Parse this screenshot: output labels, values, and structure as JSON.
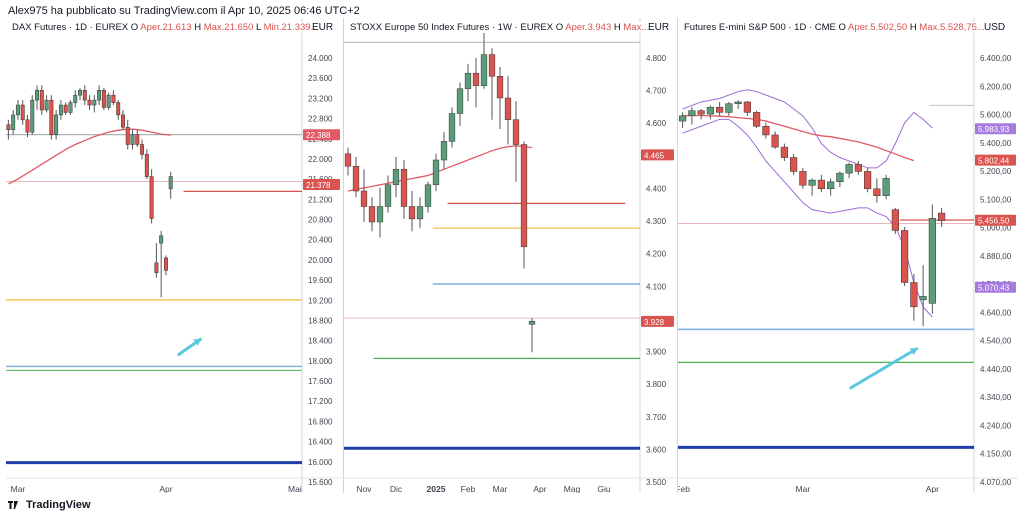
{
  "header": {
    "published_text": "Alex975 ha pubblicato su TradingView.com il Apr 10, 2025 06:46 UTC+2"
  },
  "footer": {
    "brand": "TradingView"
  },
  "colors": {
    "bull": "#5b9c7a",
    "bear": "#d9534f",
    "ma": "#e05a66",
    "band": "#9c6bd6",
    "orange": "#f5b83b",
    "blue": "#7aaee0",
    "green": "#4caf50",
    "navy": "#1e3faa"
  },
  "chart_data": [
    {
      "type": "candlestick",
      "title": "DAX Futures · 1D · EUREX",
      "ohlc_text": {
        "o_label": "O",
        "o": "Aper.21.613",
        "h_label": "H",
        "h": "Max.21.650",
        "l_label": "L",
        "l": "Min.21.339..."
      },
      "currency": "EUR",
      "ylim": [
        15600,
        24400
      ],
      "y_ticks": [
        "24.000",
        "23.600",
        "23.200",
        "22.800",
        "22.400",
        "22.000",
        "21.600",
        "21.200",
        "20.800",
        "20.400",
        "20.000",
        "19.600",
        "19.200",
        "18.800",
        "18.400",
        "18.000",
        "17.600",
        "17.200",
        "16.800",
        "16.400",
        "16.000",
        "15.600"
      ],
      "x_ticks": [
        {
          "label": "Mar",
          "index": 2
        },
        {
          "label": "Apr",
          "index": 33
        },
        {
          "label": "Mai",
          "index": 60
        }
      ],
      "price_labels": [
        {
          "text": "22.388",
          "value": 22388,
          "color": "#e05a66"
        },
        {
          "text": "21.378",
          "value": 21378,
          "color": "#d9534f"
        }
      ],
      "candles": [
        [
          22600,
          22700,
          22300,
          22500
        ],
        [
          22500,
          22900,
          22400,
          22800
        ],
        [
          22800,
          23100,
          22700,
          23000
        ],
        [
          23000,
          23100,
          22600,
          22700
        ],
        [
          22700,
          22800,
          22350,
          22450
        ],
        [
          22450,
          23200,
          22400,
          23100
        ],
        [
          23100,
          23400,
          22900,
          23300
        ],
        [
          23300,
          23400,
          22800,
          22900
        ],
        [
          22900,
          23200,
          22850,
          23100
        ],
        [
          23100,
          23200,
          22300,
          22400
        ],
        [
          22400,
          22900,
          22300,
          22800
        ],
        [
          22800,
          23100,
          22700,
          23000
        ],
        [
          23000,
          23050,
          22800,
          22850
        ],
        [
          22850,
          23100,
          22800,
          23050
        ],
        [
          23050,
          23300,
          22950,
          23200
        ],
        [
          23200,
          23350,
          23100,
          23300
        ],
        [
          23300,
          23400,
          23000,
          23100
        ],
        [
          23100,
          23200,
          22900,
          23000
        ],
        [
          23000,
          23200,
          22850,
          23100
        ],
        [
          23100,
          23400,
          23000,
          23300
        ],
        [
          23300,
          23350,
          22900,
          22950
        ],
        [
          22950,
          23250,
          22900,
          23200
        ],
        [
          23200,
          23300,
          23000,
          23050
        ],
        [
          23050,
          23100,
          22700,
          22800
        ],
        [
          22800,
          22900,
          22500,
          22550
        ],
        [
          22550,
          22700,
          22100,
          22200
        ],
        [
          22200,
          22500,
          22100,
          22400
        ],
        [
          22400,
          22500,
          22150,
          22200
        ],
        [
          22200,
          22300,
          21900,
          22000
        ],
        [
          22000,
          22100,
          21500,
          21550
        ],
        [
          21550,
          21700,
          20600,
          20700
        ],
        [
          19800,
          20200,
          19500,
          19600
        ],
        [
          20200,
          20450,
          19100,
          20350
        ],
        [
          19900,
          19950,
          19550,
          19650
        ],
        [
          21300,
          21650,
          21100,
          21550
        ]
      ],
      "ma": [
        21400,
        21450,
        21500,
        21560,
        21620,
        21680,
        21740,
        21800,
        21860,
        21920,
        21980,
        22040,
        22100,
        22150,
        22200,
        22240,
        22280,
        22320,
        22360,
        22390,
        22420,
        22450,
        22470,
        22490,
        22500,
        22510,
        22510,
        22500,
        22490,
        22470,
        22450,
        22430,
        22410,
        22400,
        22388
      ],
      "hlines": [
        {
          "value": 22400,
          "x0": 0,
          "x1": 1,
          "color": "#b0b3b8",
          "width": 1.2
        },
        {
          "value": 21450,
          "x0": 0,
          "x1": 1,
          "color": "#eab7bb",
          "width": 1
        },
        {
          "value": 21250,
          "x0": 0.6,
          "x1": 1,
          "color": "#d9534f",
          "width": 1.3
        },
        {
          "value": 19050,
          "x0": 0,
          "x1": 1,
          "color": "#f5b83b",
          "width": 1.2
        },
        {
          "value": 17700,
          "x0": 0,
          "x1": 1,
          "color": "#7aaee0",
          "width": 1.4
        },
        {
          "value": 17620,
          "x0": 0,
          "x1": 1,
          "color": "#4caf50",
          "width": 1
        },
        {
          "value": 15750,
          "x0": 0,
          "x1": 1,
          "color": "#1e3faa",
          "width": 3
        }
      ],
      "arrow": {
        "from": [
          0.58,
          0.71
        ],
        "to": [
          0.66,
          0.675
        ]
      }
    },
    {
      "type": "candlestick",
      "title": "STOXX Europe 50 Index Futures · 1W · EUREX",
      "ohlc_text": {
        "o_label": "O",
        "o": "Aper.3.943",
        "h_label": "H",
        "h": "Max..."
      },
      "currency": "EUR",
      "ylim": [
        3450,
        4850
      ],
      "y_ticks": [
        "4.800",
        "4.700",
        "4.600",
        "4.500",
        "4.400",
        "4.300",
        "4.200",
        "4.100",
        "4.000",
        "3.900",
        "3.800",
        "3.700",
        "3.600",
        "3.500"
      ],
      "x_ticks": [
        {
          "label": "Nov",
          "index": 2
        },
        {
          "label": "Dic",
          "index": 6
        },
        {
          "label": "2025",
          "index": 11,
          "bold": true
        },
        {
          "label": "Feb",
          "index": 15
        },
        {
          "label": "Mar",
          "index": 19
        },
        {
          "label": "Apr",
          "index": 24
        },
        {
          "label": "Mag",
          "index": 28
        },
        {
          "label": "Giu",
          "index": 32
        }
      ],
      "price_labels": [
        {
          "text": "4.465",
          "value": 4465,
          "color": "#d9534f"
        },
        {
          "text": "3.928",
          "value": 3928,
          "color": "#d9534f"
        }
      ],
      "candles": [
        [
          4470,
          4490,
          4400,
          4430
        ],
        [
          4430,
          4460,
          4330,
          4350
        ],
        [
          4350,
          4420,
          4250,
          4300
        ],
        [
          4300,
          4330,
          4220,
          4250
        ],
        [
          4250,
          4360,
          4200,
          4300
        ],
        [
          4300,
          4400,
          4280,
          4370
        ],
        [
          4370,
          4460,
          4330,
          4420
        ],
        [
          4420,
          4450,
          4260,
          4300
        ],
        [
          4300,
          4350,
          4220,
          4260
        ],
        [
          4260,
          4330,
          4230,
          4300
        ],
        [
          4300,
          4380,
          4280,
          4370
        ],
        [
          4370,
          4470,
          4350,
          4450
        ],
        [
          4450,
          4540,
          4420,
          4510
        ],
        [
          4510,
          4620,
          4490,
          4600
        ],
        [
          4600,
          4700,
          4560,
          4680
        ],
        [
          4680,
          4760,
          4640,
          4730
        ],
        [
          4730,
          4780,
          4620,
          4690
        ],
        [
          4690,
          4860,
          4680,
          4790
        ],
        [
          4790,
          4810,
          4580,
          4720
        ],
        [
          4720,
          4750,
          4550,
          4650
        ],
        [
          4650,
          4720,
          4500,
          4580
        ],
        [
          4580,
          4640,
          4380,
          4500
        ],
        [
          4500,
          4510,
          4100,
          4170
        ],
        [
          3920,
          3940,
          3830,
          3930
        ]
      ],
      "ma": [
        4350,
        4355,
        4360,
        4365,
        4370,
        4375,
        4380,
        4385,
        4390,
        4395,
        4400,
        4410,
        4420,
        4430,
        4440,
        4450,
        4460,
        4470,
        4480,
        4488,
        4493,
        4496,
        4494,
        4490
      ],
      "hlines": [
        {
          "value": 4830,
          "x0": 0,
          "x1": 1,
          "color": "#b0b3b8",
          "width": 1
        },
        {
          "value": 4310,
          "x0": 0.35,
          "x1": 0.95,
          "color": "#d9534f",
          "width": 1.3
        },
        {
          "value": 4230,
          "x0": 0.3,
          "x1": 1,
          "color": "#f5b83b",
          "width": 1.2
        },
        {
          "value": 4050,
          "x0": 0.3,
          "x1": 1,
          "color": "#7aaee0",
          "width": 1.4
        },
        {
          "value": 3940,
          "x0": 0,
          "x1": 1,
          "color": "#eab7bb",
          "width": 1
        },
        {
          "value": 3810,
          "x0": 0.1,
          "x1": 1,
          "color": "#4caf50",
          "width": 1.2
        },
        {
          "value": 3520,
          "x0": 0,
          "x1": 1,
          "color": "#1e3faa",
          "width": 3
        }
      ]
    },
    {
      "type": "candlestick",
      "title": "Futures E-mini S&P 500 · 1D · CME",
      "ohlc_text": {
        "o_label": "O",
        "o": "Aper.5.502,50",
        "h_label": "H",
        "h": "Max.5.528,75..."
      },
      "currency": "USD",
      "ylim": [
        4020,
        6520
      ],
      "y_ticks": [
        "6.400,00",
        "6.200,00",
        "5.600,00",
        "5.400,00",
        "5.200,00",
        "5.100,00",
        "5.000,00",
        "4.880,00",
        "4.760,00",
        "4.640,00",
        "4.540,00",
        "4.440,00",
        "4.340,00",
        "4.240,00",
        "4.150,00",
        "4.070,00"
      ],
      "x_ticks": [
        {
          "label": "Feb",
          "index": 0
        },
        {
          "label": "Mar",
          "index": 13
        },
        {
          "label": "Apr",
          "index": 27
        }
      ],
      "price_labels": [
        {
          "text": "5.983,93",
          "value": 5983,
          "color": "#a57be0"
        },
        {
          "text": "5.802,44",
          "value": 5802,
          "color": "#d9534f"
        },
        {
          "text": "5.456,50",
          "value": 5456,
          "color": "#d9534f"
        },
        {
          "text": "5.070,43",
          "value": 5070,
          "color": "#a57be0"
        }
      ],
      "candles": [
        [
          6030,
          6080,
          5990,
          6060
        ],
        [
          6060,
          6110,
          6010,
          6090
        ],
        [
          6090,
          6100,
          6040,
          6070
        ],
        [
          6070,
          6120,
          6040,
          6110
        ],
        [
          6110,
          6140,
          6060,
          6080
        ],
        [
          6080,
          6140,
          6060,
          6130
        ],
        [
          6130,
          6150,
          6100,
          6140
        ],
        [
          6140,
          6145,
          6060,
          6080
        ],
        [
          6080,
          6090,
          5990,
          6000
        ],
        [
          6000,
          6020,
          5930,
          5950
        ],
        [
          5950,
          5970,
          5870,
          5880
        ],
        [
          5880,
          5900,
          5800,
          5820
        ],
        [
          5820,
          5840,
          5720,
          5740
        ],
        [
          5740,
          5760,
          5640,
          5660
        ],
        [
          5660,
          5700,
          5600,
          5690
        ],
        [
          5690,
          5720,
          5620,
          5640
        ],
        [
          5640,
          5700,
          5600,
          5680
        ],
        [
          5680,
          5740,
          5650,
          5730
        ],
        [
          5730,
          5790,
          5700,
          5780
        ],
        [
          5780,
          5800,
          5720,
          5740
        ],
        [
          5740,
          5760,
          5620,
          5640
        ],
        [
          5640,
          5700,
          5560,
          5600
        ],
        [
          5600,
          5720,
          5580,
          5700
        ],
        [
          5520,
          5530,
          5380,
          5400
        ],
        [
          5400,
          5420,
          5080,
          5100
        ],
        [
          5100,
          5150,
          4880,
          4960
        ],
        [
          5000,
          5200,
          4850,
          5020
        ],
        [
          4980,
          5550,
          4920,
          5470
        ],
        [
          5500,
          5530,
          5420,
          5456
        ]
      ],
      "ma": [
        6060,
        6062,
        6062,
        6060,
        6058,
        6055,
        6050,
        6045,
        6040,
        6030,
        6015,
        6000,
        5985,
        5970,
        5955,
        5945,
        5940,
        5930,
        5920,
        5910,
        5895,
        5880,
        5860,
        5840,
        5820,
        5802
      ],
      "band_upper": [
        6100,
        6120,
        6140,
        6150,
        6160,
        6180,
        6200,
        6210,
        6200,
        6180,
        6160,
        6140,
        6100,
        6060,
        5990,
        5900,
        5850,
        5820,
        5800,
        5780,
        5760,
        5760,
        5800,
        5900,
        6020,
        6080,
        6040,
        5990
      ],
      "band_lower": [
        5960,
        5980,
        6000,
        6020,
        6040,
        6040,
        6000,
        5950,
        5880,
        5800,
        5740,
        5680,
        5620,
        5560,
        5520,
        5510,
        5500,
        5510,
        5520,
        5530,
        5530,
        5500,
        5480,
        5420,
        5300,
        5100,
        4960,
        4900
      ],
      "hlines": [
        {
          "value": 6120,
          "x0": 0.85,
          "x1": 1,
          "color": "#c6c8cc",
          "width": 1.2
        },
        {
          "value": 5460,
          "x0": 0.75,
          "x1": 1,
          "color": "#d9534f",
          "width": 1.3
        },
        {
          "value": 5440,
          "x0": 0,
          "x1": 1,
          "color": "#eab7bb",
          "width": 1
        },
        {
          "value": 4830,
          "x0": 0,
          "x1": 1,
          "color": "#7aaee0",
          "width": 1.6
        },
        {
          "value": 4640,
          "x0": 0,
          "x1": 1,
          "color": "#4caf50",
          "width": 1.2
        },
        {
          "value": 4150,
          "x0": 0,
          "x1": 1,
          "color": "#1e3faa",
          "width": 3
        }
      ],
      "arrow": {
        "from": [
          0.58,
          0.78
        ],
        "to": [
          0.81,
          0.695
        ]
      }
    }
  ]
}
